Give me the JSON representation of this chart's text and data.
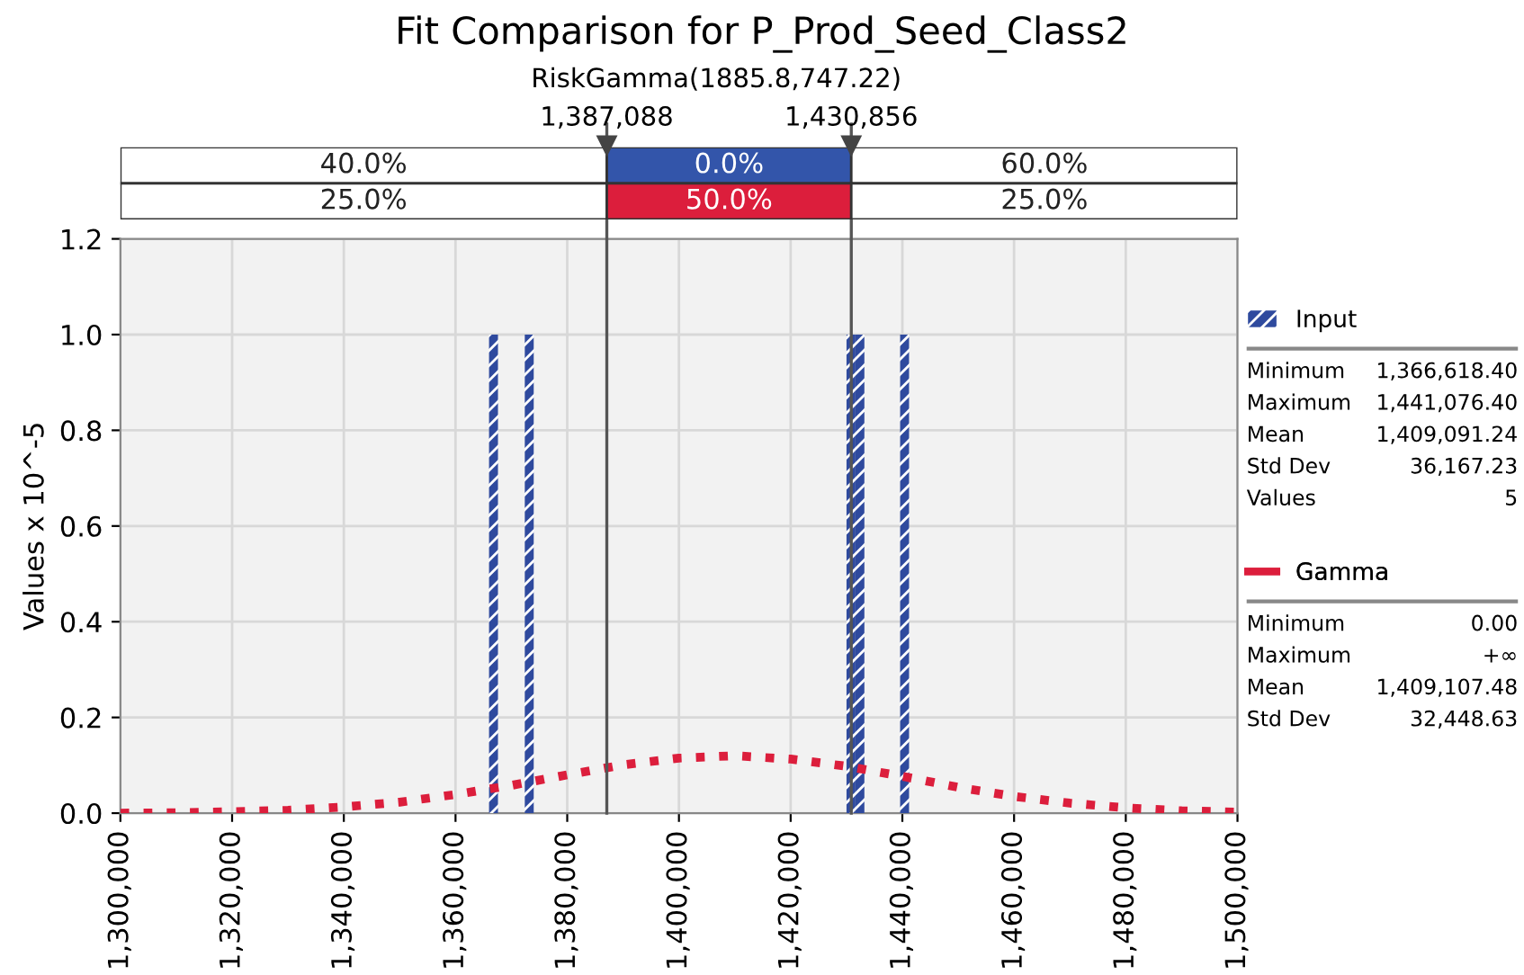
{
  "chart_data": {
    "type": "histogram",
    "title": "Fit Comparison for P_Prod_Seed_Class2",
    "subtitle": "RiskGamma(1885.8,747.22)",
    "ylabel": "Values x 10^-5",
    "bins": [
      1366000,
      1367600,
      1369200,
      1370800,
      1372400,
      1374000,
      1375600,
      1377200,
      1378800,
      1380400,
      1382000,
      1383600,
      1385200,
      1386800,
      1388400,
      1390000,
      1391600,
      1393200,
      1394800,
      1396400,
      1398000,
      1399600,
      1401200,
      1402800,
      1404400,
      1406000,
      1407600,
      1409200,
      1410800,
      1412400,
      1414000,
      1415600,
      1417200,
      1418800,
      1420400,
      1422000,
      1423600,
      1425200,
      1426800,
      1428400,
      1430000,
      1431600,
      1433200,
      1434800,
      1436400,
      1438000,
      1439600,
      1441200,
      1442800
    ],
    "series": [
      {
        "name": "Input",
        "color": "#2f4a9e",
        "values": [
          1,
          0,
          0,
          0,
          1,
          0,
          0,
          0,
          0,
          0,
          0,
          0,
          0,
          0,
          0,
          0,
          0,
          0,
          0,
          0,
          0,
          0,
          0,
          0,
          0,
          0,
          0,
          0,
          0,
          0,
          0,
          0,
          0,
          0,
          0,
          0,
          0,
          0,
          0,
          0,
          1,
          1,
          0,
          0,
          0,
          0,
          1,
          0
        ]
      },
      {
        "name": "Gamma",
        "type": "line",
        "color": "#dc1e3c",
        "line_style": "dotted",
        "x": [
          1300000,
          1310000,
          1320000,
          1330000,
          1340000,
          1350000,
          1360000,
          1370000,
          1380000,
          1390000,
          1400000,
          1410000,
          1420000,
          1430000,
          1440000,
          1450000,
          1460000,
          1470000,
          1480000,
          1490000,
          1500000
        ],
        "values": [
          0,
          0.001,
          0.003,
          0.006,
          0.013,
          0.023,
          0.039,
          0.058,
          0.08,
          0.101,
          0.115,
          0.12,
          0.113,
          0.098,
          0.077,
          0.054,
          0.035,
          0.021,
          0.011,
          0.005,
          0.002
        ]
      }
    ],
    "xlim": [
      1300000,
      1500000
    ],
    "xticks": [
      {
        "value": 1300000,
        "label": "1,300,000"
      },
      {
        "value": 1320000,
        "label": "1,320,000"
      },
      {
        "value": 1340000,
        "label": "1,340,000"
      },
      {
        "value": 1360000,
        "label": "1,360,000"
      },
      {
        "value": 1380000,
        "label": "1,380,000"
      },
      {
        "value": 1400000,
        "label": "1,400,000"
      },
      {
        "value": 1420000,
        "label": "1,420,000"
      },
      {
        "value": 1440000,
        "label": "1,440,000"
      },
      {
        "value": 1460000,
        "label": "1,460,000"
      },
      {
        "value": 1480000,
        "label": "1,480,000"
      },
      {
        "value": 1500000,
        "label": "1,500,000"
      }
    ],
    "ylim": [
      0,
      1.2
    ],
    "yticks": [
      {
        "value": 0,
        "label": "0.0"
      },
      {
        "value": 0.2,
        "label": "0.2"
      },
      {
        "value": 0.4,
        "label": "0.4"
      },
      {
        "value": 0.6,
        "label": "0.6"
      },
      {
        "value": 0.8,
        "label": "0.8"
      },
      {
        "value": 1,
        "label": "1.0"
      },
      {
        "value": 1.2,
        "label": "1.2"
      }
    ],
    "ref_lines": [
      {
        "axis": "x",
        "value": 1387088,
        "label": "1,387,088",
        "color": "#555555"
      },
      {
        "axis": "x",
        "value": 1430856,
        "label": "1,430,856",
        "color": "#555555"
      }
    ],
    "annotations": [
      "40.0%",
      "0.0%",
      "60.0%",
      "25.0%",
      "50.0%",
      "25.0%",
      "Minimum",
      "1,366,618.40",
      "Maximum",
      "1,441,076.40",
      "Mean",
      "1,409,091.24",
      "Std Dev",
      "36,167.23",
      "Values",
      "5",
      "Minimum",
      "0.00",
      "Maximum",
      "+∞",
      "Mean",
      "1,409,107.48",
      "Std Dev",
      "32,448.63"
    ],
    "grid": true,
    "legend": "right"
  }
}
